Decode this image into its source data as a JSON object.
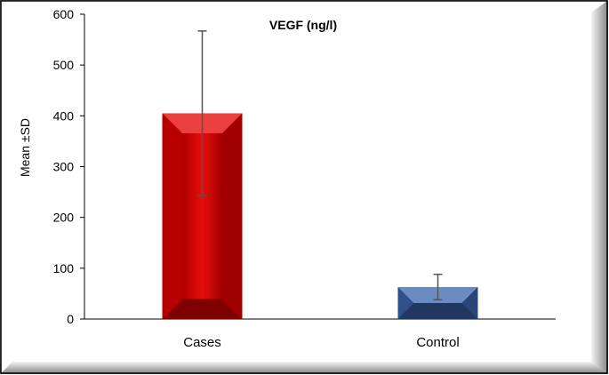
{
  "chart_data": {
    "type": "bar",
    "title": "VEGF (ng/l)",
    "xlabel": "",
    "ylabel": "Mean ±SD",
    "categories": [
      "Cases",
      "Control"
    ],
    "values": [
      405,
      63
    ],
    "error": [
      162,
      25
    ],
    "ylim": [
      0,
      600
    ],
    "yticks": [
      0,
      100,
      200,
      300,
      400,
      500,
      600
    ],
    "grid": false,
    "legend": "none",
    "colors": [
      "#e60000",
      "#3b64ad"
    ]
  }
}
